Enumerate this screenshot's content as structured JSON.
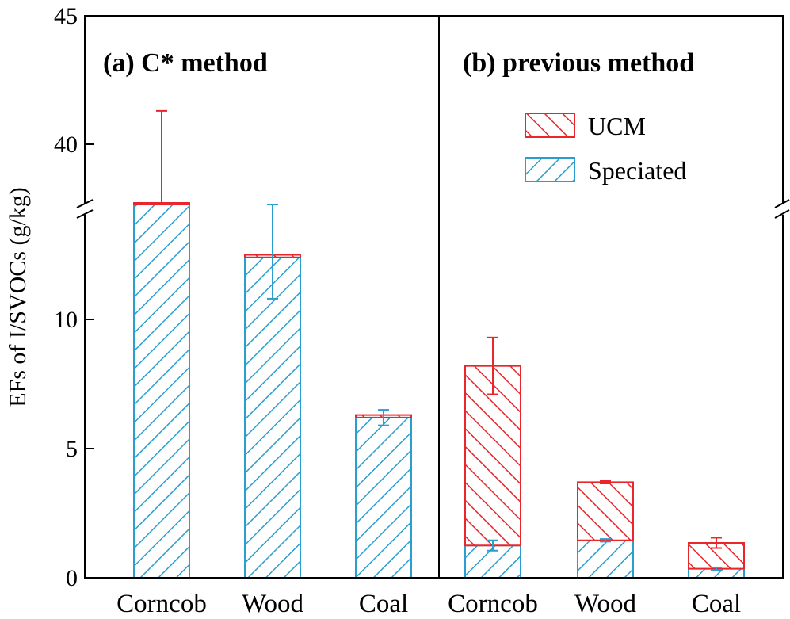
{
  "chart_data": {
    "type": "bar",
    "stacked": true,
    "ylabel": "EFs of I/SVOCs (g/kg)",
    "ylim": [
      0,
      45
    ],
    "axis_break": [
      13.5,
      39
    ],
    "y_ticks": [
      {
        "value": 0,
        "label": "0"
      },
      {
        "value": 5,
        "label": "5"
      },
      {
        "value": 10,
        "label": "10"
      },
      {
        "value": 40,
        "label": "40"
      },
      {
        "value": 45,
        "label": "45"
      }
    ],
    "colors": {
      "UCM": "#e8262b",
      "Speciated": "#2a9fcf"
    },
    "legend": {
      "placement": "top-right of panel (b)",
      "entries": [
        "UCM",
        "Speciated"
      ]
    },
    "panels": [
      {
        "title": "(a) C* method",
        "categories": [
          "Corncob",
          "Wood",
          "Coal"
        ],
        "series": [
          {
            "name": "Speciated",
            "values": [
              38.3,
              12.4,
              6.2
            ],
            "error": [
              null,
              1.6,
              0.3
            ]
          },
          {
            "name": "UCM",
            "values": [
              0.5,
              0.1,
              0.1
            ],
            "error": [
              2.5,
              null,
              null
            ]
          }
        ]
      },
      {
        "title": "(b) previous method",
        "categories": [
          "Corncob",
          "Wood",
          "Coal"
        ],
        "series": [
          {
            "name": "Speciated",
            "values": [
              1.25,
              1.45,
              0.35
            ],
            "error": [
              0.2,
              0.05,
              0.05
            ]
          },
          {
            "name": "UCM",
            "values": [
              6.95,
              2.25,
              1.0
            ],
            "error": [
              1.1,
              0.05,
              0.2
            ]
          }
        ]
      }
    ]
  }
}
